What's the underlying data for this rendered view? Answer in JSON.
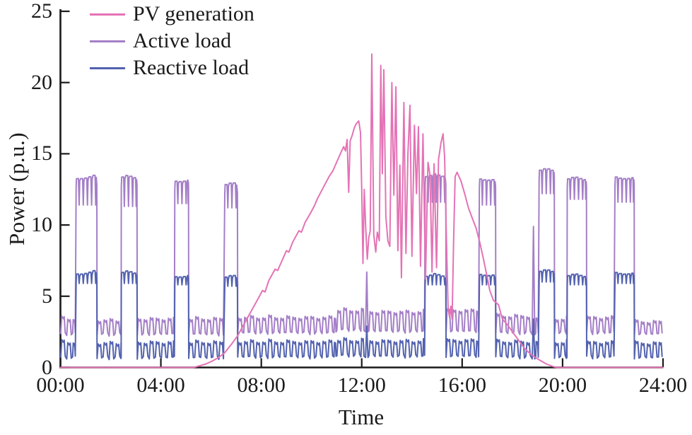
{
  "figure": {
    "background": "#ffffff",
    "text_color": "#1a1a1a"
  },
  "chart_data": {
    "type": "line",
    "title": "",
    "xlabel": "Time",
    "ylabel": "Power (p.u.)",
    "xlim": [
      0,
      24
    ],
    "ylim": [
      0,
      25
    ],
    "x_unit": "hours",
    "grid": false,
    "legend_position": "top-left",
    "axis_color": "#1a1a1a",
    "xticks": [
      {
        "t": 0,
        "label": "00:00"
      },
      {
        "t": 4,
        "label": "04:00"
      },
      {
        "t": 8,
        "label": "08:00"
      },
      {
        "t": 12,
        "label": "12:00"
      },
      {
        "t": 16,
        "label": "16:00"
      },
      {
        "t": 20,
        "label": "20:00"
      },
      {
        "t": 24,
        "label": "24:00"
      }
    ],
    "yticks": [
      {
        "v": 0,
        "label": "0"
      },
      {
        "v": 5,
        "label": "5"
      },
      {
        "v": 10,
        "label": "10"
      },
      {
        "v": 15,
        "label": "15"
      },
      {
        "v": 20,
        "label": "20"
      },
      {
        "v": 25,
        "label": "25"
      }
    ],
    "series": [
      {
        "name": "PV generation",
        "color": "#e473b5",
        "line_width": 2,
        "points": [
          [
            0,
            0
          ],
          [
            5.3,
            0
          ],
          [
            5.55,
            0.12
          ],
          [
            5.8,
            0.25
          ],
          [
            6.05,
            0.45
          ],
          [
            6.3,
            0.7
          ],
          [
            6.55,
            1.05
          ],
          [
            6.8,
            1.6
          ],
          [
            7.05,
            2.2
          ],
          [
            7.3,
            3.0
          ],
          [
            7.55,
            3.8
          ],
          [
            7.8,
            4.6
          ],
          [
            8.05,
            5.4
          ],
          [
            8.15,
            5.3
          ],
          [
            8.3,
            6.1
          ],
          [
            8.55,
            6.9
          ],
          [
            8.65,
            6.8
          ],
          [
            8.8,
            7.4
          ],
          [
            9.0,
            8.2
          ],
          [
            9.1,
            8.1
          ],
          [
            9.25,
            8.8
          ],
          [
            9.5,
            9.6
          ],
          [
            9.6,
            9.5
          ],
          [
            9.75,
            10.2
          ],
          [
            9.95,
            10.8
          ],
          [
            10.1,
            11.3
          ],
          [
            10.25,
            11.9
          ],
          [
            10.4,
            12.4
          ],
          [
            10.55,
            12.9
          ],
          [
            10.7,
            13.4
          ],
          [
            10.85,
            13.8
          ],
          [
            11.0,
            14.4
          ],
          [
            11.1,
            14.8
          ],
          [
            11.2,
            15.2
          ],
          [
            11.28,
            15.5
          ],
          [
            11.35,
            15.2
          ],
          [
            11.42,
            16.0
          ],
          [
            11.48,
            12.3
          ],
          [
            11.54,
            15.9
          ],
          [
            11.62,
            16.3
          ],
          [
            11.7,
            16.8
          ],
          [
            11.78,
            17.1
          ],
          [
            11.88,
            17.3
          ],
          [
            11.95,
            16.5
          ],
          [
            12.0,
            12.4
          ],
          [
            12.05,
            7.3
          ],
          [
            12.1,
            12.5
          ],
          [
            12.16,
            9.8
          ],
          [
            12.22,
            7.6
          ],
          [
            12.28,
            9.1
          ],
          [
            12.34,
            9.6
          ],
          [
            12.4,
            22.0
          ],
          [
            12.48,
            9.3
          ],
          [
            12.56,
            8.1
          ],
          [
            12.62,
            9.5
          ],
          [
            12.7,
            8.9
          ],
          [
            12.76,
            21.2
          ],
          [
            12.82,
            13.6
          ],
          [
            12.88,
            20.9
          ],
          [
            12.96,
            10.6
          ],
          [
            13.04,
            8.9
          ],
          [
            13.12,
            8.5
          ],
          [
            13.2,
            20.0
          ],
          [
            13.28,
            12.1
          ],
          [
            13.36,
            19.7
          ],
          [
            13.44,
            8.2
          ],
          [
            13.52,
            14.2
          ],
          [
            13.58,
            6.3
          ],
          [
            13.68,
            18.6
          ],
          [
            13.76,
            8.0
          ],
          [
            13.84,
            15.0
          ],
          [
            13.92,
            18.4
          ],
          [
            14.0,
            7.8
          ],
          [
            14.1,
            17.0
          ],
          [
            14.18,
            12.2
          ],
          [
            14.26,
            16.9
          ],
          [
            14.34,
            7.1
          ],
          [
            14.44,
            16.4
          ],
          [
            14.54,
            6.2
          ],
          [
            14.64,
            14.4
          ],
          [
            14.72,
            13.5
          ],
          [
            14.8,
            6.7
          ],
          [
            14.88,
            14.3
          ],
          [
            14.98,
            7.0
          ],
          [
            15.06,
            14.6
          ],
          [
            15.16,
            15.8
          ],
          [
            15.24,
            16.4
          ],
          [
            15.3,
            14.8
          ],
          [
            15.38,
            8.5
          ],
          [
            15.44,
            4.2
          ],
          [
            15.5,
            3.5
          ],
          [
            15.55,
            4.3
          ],
          [
            15.6,
            3.4
          ],
          [
            15.66,
            9.0
          ],
          [
            15.72,
            13.4
          ],
          [
            15.8,
            13.7
          ],
          [
            15.95,
            13.1
          ],
          [
            16.1,
            12.2
          ],
          [
            16.25,
            11.2
          ],
          [
            16.4,
            10.5
          ],
          [
            16.55,
            9.8
          ],
          [
            16.7,
            8.8
          ],
          [
            16.85,
            7.6
          ],
          [
            17.0,
            6.3
          ],
          [
            17.1,
            5.4
          ],
          [
            17.25,
            4.7
          ],
          [
            17.45,
            4.4
          ],
          [
            17.6,
            3.4
          ],
          [
            17.8,
            3.0
          ],
          [
            18.0,
            2.5
          ],
          [
            18.25,
            1.9
          ],
          [
            18.5,
            1.3
          ],
          [
            18.75,
            0.9
          ],
          [
            19.05,
            0.55
          ],
          [
            19.35,
            0.25
          ],
          [
            19.6,
            0.08
          ],
          [
            19.75,
            0
          ],
          [
            24,
            0
          ]
        ]
      },
      {
        "name": "Active load",
        "color": "#a47fc7",
        "line_width": 2,
        "pattern": {
          "period": 0.24,
          "bcycle": 0.165,
          "segments": [
            {
              "k": "osc",
              "t0": 0,
              "t1": 0.62,
              "lo": 2.2,
              "hi": 3.6
            },
            {
              "k": "burst",
              "t0": 0.62,
              "t1": 1.45,
              "top": 13.5,
              "notch": 11.4
            },
            {
              "k": "osc",
              "t0": 1.45,
              "t1": 2.42,
              "lo": 2.2,
              "hi": 3.5
            },
            {
              "k": "burst",
              "t0": 2.42,
              "t1": 3.05,
              "top": 13.5,
              "notch": 11.3
            },
            {
              "k": "osc",
              "t0": 3.05,
              "t1": 4.55,
              "lo": 2.2,
              "hi": 3.6
            },
            {
              "k": "burst",
              "t0": 4.55,
              "t1": 5.1,
              "top": 13.3,
              "notch": 11.5
            },
            {
              "k": "osc",
              "t0": 5.1,
              "t1": 6.54,
              "lo": 2.2,
              "hi": 3.6
            },
            {
              "k": "burst",
              "t0": 6.54,
              "t1": 7.05,
              "top": 13.0,
              "notch": 11.2
            },
            {
              "k": "osc",
              "t0": 7.05,
              "t1": 11.0,
              "lo": 2.3,
              "hi": 3.7
            },
            {
              "k": "osc",
              "t0": 11.0,
              "t1": 12.12,
              "lo": 2.5,
              "hi": 4.2
            },
            {
              "k": "spike",
              "t": 12.2,
              "v": 6.7,
              "base": 2.5
            },
            {
              "k": "osc",
              "t0": 12.28,
              "t1": 14.52,
              "lo": 2.4,
              "hi": 4.1
            },
            {
              "k": "burst",
              "t0": 14.52,
              "t1": 15.35,
              "top": 13.6,
              "notch": 11.6
            },
            {
              "k": "osc",
              "t0": 15.35,
              "t1": 16.68,
              "lo": 2.4,
              "hi": 4.2
            },
            {
              "k": "burst",
              "t0": 16.68,
              "t1": 17.33,
              "top": 13.4,
              "notch": 11.4
            },
            {
              "k": "osc",
              "t0": 17.33,
              "t1": 18.76,
              "lo": 2.3,
              "hi": 3.8
            },
            {
              "k": "spike",
              "t": 18.84,
              "v": 9.9,
              "base": 2.3
            },
            {
              "k": "osc",
              "t0": 18.92,
              "t1": 19.06,
              "lo": 2.3,
              "hi": 3.6
            },
            {
              "k": "burst",
              "t0": 19.06,
              "t1": 19.67,
              "top": 14.0,
              "notch": 12.2
            },
            {
              "k": "osc",
              "t0": 19.67,
              "t1": 20.18,
              "lo": 2.3,
              "hi": 3.6
            },
            {
              "k": "burst",
              "t0": 20.18,
              "t1": 20.95,
              "top": 13.4,
              "notch": 11.8
            },
            {
              "k": "osc",
              "t0": 20.95,
              "t1": 22.08,
              "lo": 2.3,
              "hi": 3.7
            },
            {
              "k": "burst",
              "t0": 22.08,
              "t1": 22.85,
              "top": 13.5,
              "notch": 11.6
            },
            {
              "k": "osc",
              "t0": 22.85,
              "t1": 24.0,
              "lo": 2.2,
              "hi": 3.4
            }
          ]
        }
      },
      {
        "name": "Reactive load",
        "color": "#5362af",
        "line_width": 2,
        "pattern": {
          "period": 0.24,
          "bcycle": 0.165,
          "segments": [
            {
              "k": "osc",
              "t0": 0,
              "t1": 0.62,
              "lo": 0.55,
              "hi": 1.95
            },
            {
              "k": "burst",
              "t0": 0.62,
              "t1": 1.45,
              "top": 6.8,
              "notch": 5.9
            },
            {
              "k": "osc",
              "t0": 1.45,
              "t1": 2.42,
              "lo": 0.55,
              "hi": 1.9
            },
            {
              "k": "burst",
              "t0": 2.42,
              "t1": 3.05,
              "top": 6.8,
              "notch": 5.9
            },
            {
              "k": "osc",
              "t0": 3.05,
              "t1": 4.55,
              "lo": 0.55,
              "hi": 1.95
            },
            {
              "k": "burst",
              "t0": 4.55,
              "t1": 5.1,
              "top": 6.6,
              "notch": 5.8
            },
            {
              "k": "osc",
              "t0": 5.1,
              "t1": 6.54,
              "lo": 0.55,
              "hi": 1.95
            },
            {
              "k": "burst",
              "t0": 6.54,
              "t1": 7.05,
              "top": 6.5,
              "notch": 5.7
            },
            {
              "k": "osc",
              "t0": 7.05,
              "t1": 11.0,
              "lo": 0.6,
              "hi": 2.0
            },
            {
              "k": "osc",
              "t0": 11.0,
              "t1": 12.12,
              "lo": 0.7,
              "hi": 2.1
            },
            {
              "k": "spike",
              "t": 12.2,
              "v": 2.9,
              "base": 0.7
            },
            {
              "k": "osc",
              "t0": 12.28,
              "t1": 14.52,
              "lo": 0.65,
              "hi": 2.05
            },
            {
              "k": "burst",
              "t0": 14.52,
              "t1": 15.35,
              "top": 6.6,
              "notch": 5.8
            },
            {
              "k": "osc",
              "t0": 15.35,
              "t1": 16.68,
              "lo": 0.65,
              "hi": 2.1
            },
            {
              "k": "burst",
              "t0": 16.68,
              "t1": 17.33,
              "top": 6.7,
              "notch": 5.8
            },
            {
              "k": "osc",
              "t0": 17.33,
              "t1": 18.76,
              "lo": 0.6,
              "hi": 2.0
            },
            {
              "k": "spike",
              "t": 18.84,
              "v": 3.4,
              "base": 0.6
            },
            {
              "k": "osc",
              "t0": 18.92,
              "t1": 19.06,
              "lo": 0.6,
              "hi": 1.95
            },
            {
              "k": "burst",
              "t0": 19.06,
              "t1": 19.67,
              "top": 6.9,
              "notch": 6.0
            },
            {
              "k": "osc",
              "t0": 19.67,
              "t1": 20.18,
              "lo": 0.6,
              "hi": 1.95
            },
            {
              "k": "burst",
              "t0": 20.18,
              "t1": 20.95,
              "top": 6.6,
              "notch": 5.8
            },
            {
              "k": "osc",
              "t0": 20.95,
              "t1": 22.08,
              "lo": 0.6,
              "hi": 1.95
            },
            {
              "k": "burst",
              "t0": 22.08,
              "t1": 22.85,
              "top": 6.8,
              "notch": 5.9
            },
            {
              "k": "osc",
              "t0": 22.85,
              "t1": 24.0,
              "lo": 0.55,
              "hi": 1.9
            }
          ]
        }
      }
    ]
  }
}
